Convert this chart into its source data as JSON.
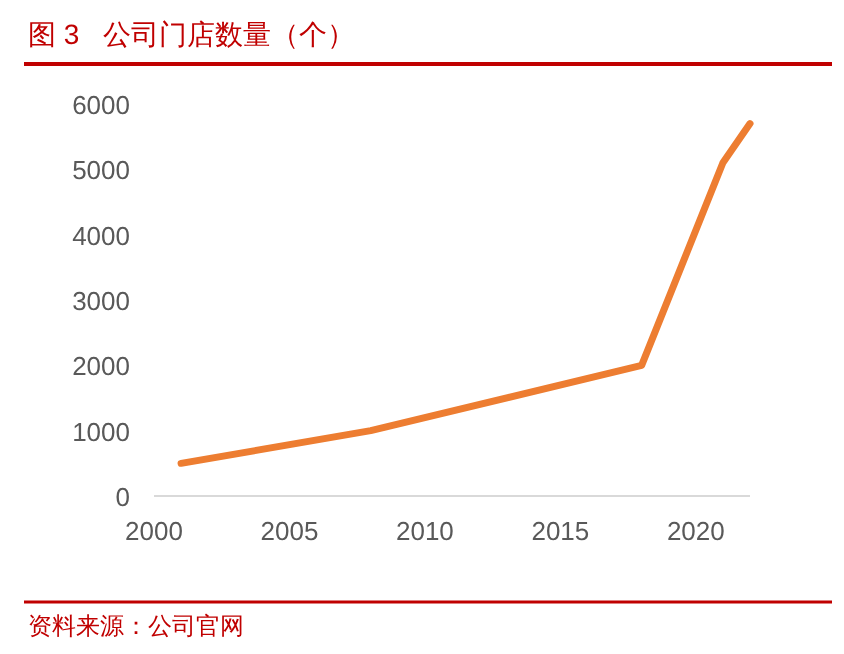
{
  "chart_data": {
    "type": "line",
    "title": "图 3   公司门店数量（个）",
    "x": [
      2001,
      2008,
      2018,
      2021,
      2022
    ],
    "series": [
      {
        "color": "#ed7d31",
        "values": [
          500,
          1000,
          2000,
          5100,
          5700
        ]
      }
    ],
    "xlim": [
      2000,
      2022
    ],
    "xticks": [
      2000,
      2005,
      2010,
      2015,
      2020
    ],
    "ylim": [
      0,
      6000
    ],
    "yticks": [
      0,
      1000,
      2000,
      3000,
      4000,
      5000,
      6000
    ],
    "grid": false,
    "marker": "none",
    "line_style": "solid",
    "annotations": [
      "资料来源：公司官网"
    ]
  }
}
